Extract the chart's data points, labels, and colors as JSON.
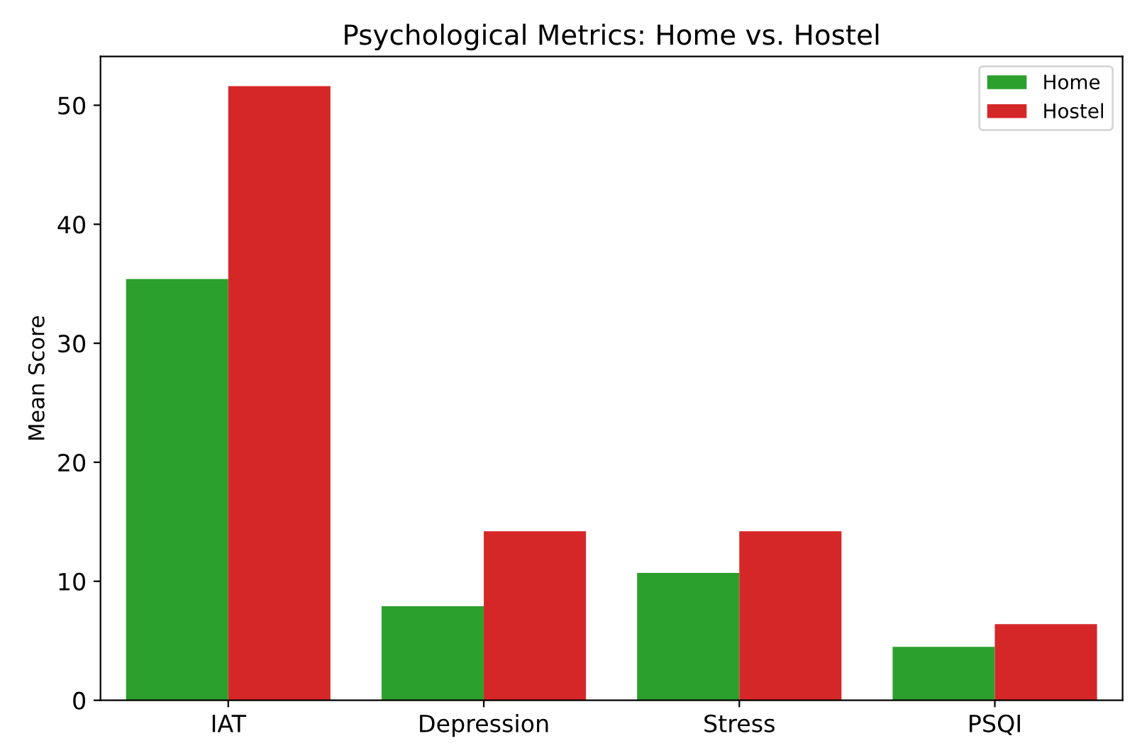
{
  "chart_data": {
    "type": "bar",
    "title": "Psychological Metrics: Home vs. Hostel",
    "ylabel": "Mean Score",
    "categories": [
      "IAT",
      "Depression",
      "Stress",
      "PSQI"
    ],
    "series": [
      {
        "name": "Home",
        "color": "#2ca02c",
        "values": [
          35.4,
          7.9,
          10.7,
          4.5
        ]
      },
      {
        "name": "Hostel",
        "color": "#d62728",
        "values": [
          51.6,
          14.2,
          14.2,
          6.4
        ]
      }
    ],
    "ylim": [
      0,
      54.1
    ],
    "yticks": [
      0,
      10,
      20,
      30,
      40,
      50
    ],
    "legend": "top right",
    "grid": false
  }
}
